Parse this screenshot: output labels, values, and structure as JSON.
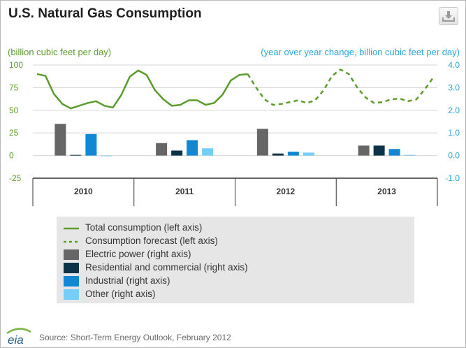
{
  "title": "U.S. Natural Gas Consumption",
  "download_icon": "download-icon",
  "source": "Source: Short-Term Energy Outlook, February 2012",
  "logo_text": "eia",
  "colors": {
    "total": "#5b9c2d",
    "forecast": "#5b9c2d",
    "electric": "#666666",
    "residential": "#0d3348",
    "industrial": "#1288d3",
    "other": "#74cef7",
    "left_axis": "#5b9c2d",
    "right_axis": "#2ba8e0"
  },
  "chart_data": {
    "type": "line",
    "ylabel_left": "(billion cubic feet per day)",
    "ylabel_right": "(year over year change, billion cubic feet per day)",
    "ylim_left": [
      -25,
      100
    ],
    "ylim_right": [
      -1.0,
      4.0
    ],
    "yticks_left": [
      "100",
      "75",
      "50",
      "25",
      "0",
      "-25"
    ],
    "yticks_right": [
      "4.0",
      "3.0",
      "2.0",
      "1.0",
      "0.0",
      "-1.0"
    ],
    "years": [
      "2010",
      "2011",
      "2012",
      "2013"
    ],
    "grid": true,
    "series": [
      {
        "name": "Total consumption (left axis)",
        "style": "solid",
        "values": [
          90,
          88,
          68,
          57,
          52,
          55,
          58,
          60,
          55,
          53,
          67,
          87,
          94,
          89,
          72,
          62,
          55,
          56,
          61,
          61,
          56,
          58,
          67,
          83,
          89,
          90
        ]
      },
      {
        "name": "Consumption forecast (left axis)",
        "style": "dashed",
        "values": [
          90,
          75,
          62,
          56,
          57,
          59,
          61,
          58,
          61,
          72,
          88,
          95,
          90,
          75,
          64,
          58,
          59,
          62,
          63,
          60,
          62,
          73,
          86
        ]
      },
      {
        "name": "Electric power (right axis)",
        "unit": "right",
        "values": [
          1.4,
          0.55,
          1.18,
          0.44
        ]
      },
      {
        "name": "Residential and commercial (right axis)",
        "unit": "right",
        "values": [
          0.03,
          0.22,
          0.09,
          0.44
        ]
      },
      {
        "name": "Industrial (right axis)",
        "unit": "right",
        "values": [
          0.95,
          0.68,
          0.17,
          0.29
        ]
      },
      {
        "name": "Other (right axis)",
        "unit": "right",
        "values": [
          0.0,
          0.32,
          0.13,
          0.03
        ]
      }
    ]
  }
}
